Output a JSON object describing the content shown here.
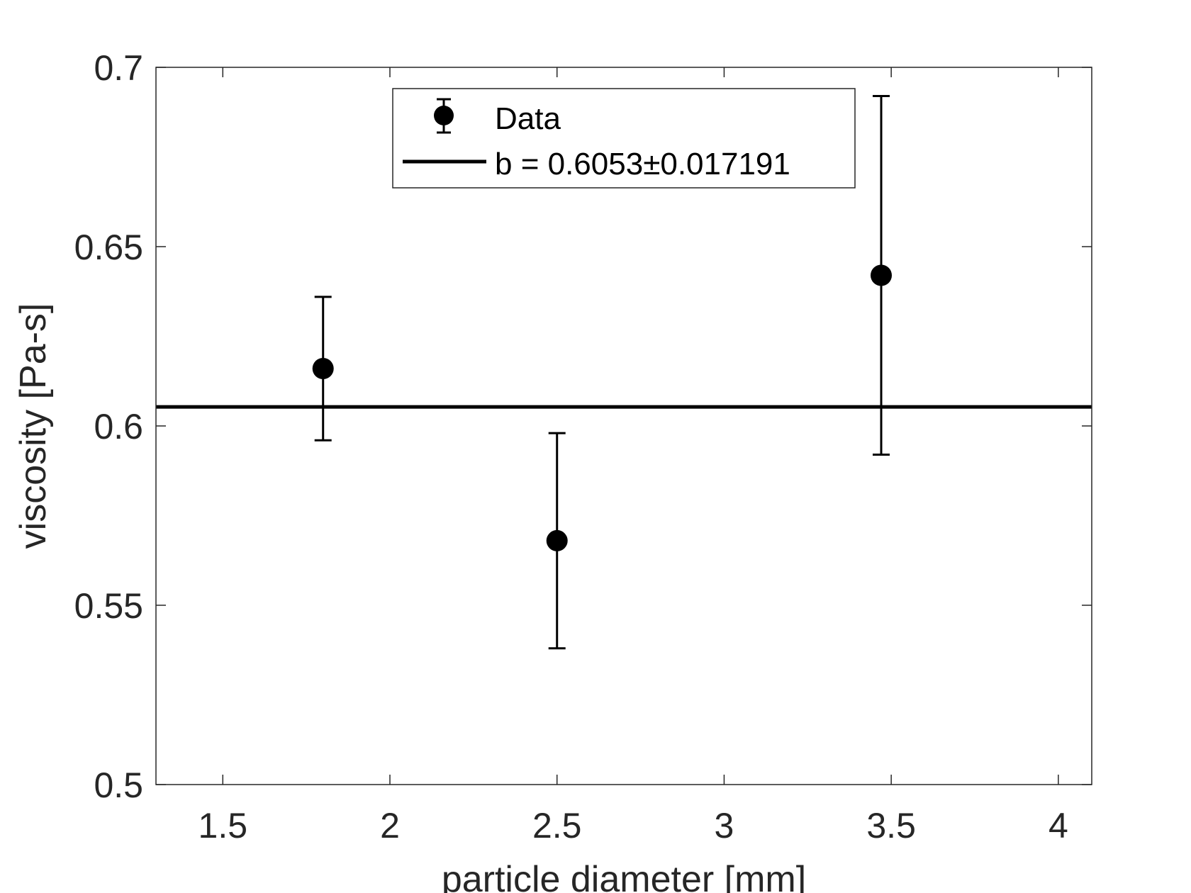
{
  "chart_data": {
    "type": "scatter",
    "title": "",
    "xlabel": "particle diameter [mm]",
    "ylabel": "viscosity [Pa-s]",
    "xlim": [
      1.3,
      4.1
    ],
    "ylim": [
      0.5,
      0.7
    ],
    "x_ticks": [
      1.5,
      2,
      2.5,
      3,
      3.5,
      4
    ],
    "x_tick_labels": [
      "1.5",
      "2",
      "2.5",
      "3",
      "3.5",
      "4"
    ],
    "y_ticks": [
      0.5,
      0.55,
      0.6,
      0.65,
      0.7
    ],
    "y_tick_labels": [
      "0.5",
      "0.55",
      "0.6",
      "0.65",
      "0.7"
    ],
    "grid": false,
    "legend_position": "top-center",
    "series": [
      {
        "name": "Data",
        "type": "errorbar",
        "color": "#000000",
        "points": [
          {
            "x": 1.8,
            "y": 0.616,
            "err": 0.02
          },
          {
            "x": 2.5,
            "y": 0.568,
            "err": 0.03
          },
          {
            "x": 3.47,
            "y": 0.642,
            "err": 0.05
          }
        ]
      },
      {
        "name": "b = 0.6053±0.017191",
        "type": "hline",
        "color": "#000000",
        "y": 0.6053
      }
    ]
  }
}
